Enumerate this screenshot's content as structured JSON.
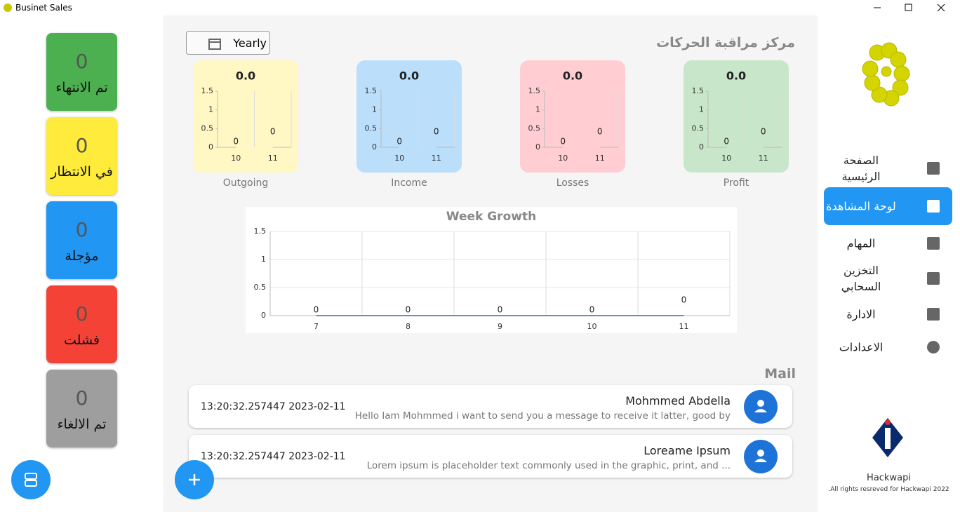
{
  "window": {
    "title": "Businet Sales"
  },
  "status_cards": [
    {
      "count": 0,
      "label": "تم الانتهاء",
      "color": "#4caf50"
    },
    {
      "count": 0,
      "label": "في الانتظار",
      "color": "#ffeb3b"
    },
    {
      "count": 0,
      "label": "مؤجلة",
      "color": "#2196f3"
    },
    {
      "count": 0,
      "label": "فشلت",
      "color": "#f44336"
    },
    {
      "count": 0,
      "label": "تم الالغاء",
      "color": "#9e9e9e"
    }
  ],
  "filter": {
    "label": "Yearly"
  },
  "header": {
    "title": "مركز مراقبة الحركات"
  },
  "summary_cards": [
    {
      "total": "0.0",
      "label": "Outgoing",
      "color": "#fff8c4",
      "categories": [
        10,
        11
      ],
      "values": [
        0,
        0
      ],
      "ylim": [
        0,
        1.5
      ],
      "yticks": [
        0,
        0.5,
        1,
        1.5
      ]
    },
    {
      "total": "0.0",
      "label": "Income",
      "color": "#bbdefb",
      "categories": [
        10,
        11
      ],
      "values": [
        0,
        0
      ],
      "ylim": [
        0,
        1.5
      ],
      "yticks": [
        0,
        0.5,
        1,
        1.5
      ]
    },
    {
      "total": "0.0",
      "label": "Losses",
      "color": "#ffcdd2",
      "categories": [
        10,
        11
      ],
      "values": [
        0,
        0
      ],
      "ylim": [
        0,
        1.5
      ],
      "yticks": [
        0,
        0.5,
        1,
        1.5
      ]
    },
    {
      "total": "0.0",
      "label": "Profit",
      "color": "#c8e6c9",
      "categories": [
        10,
        11
      ],
      "values": [
        0,
        0
      ],
      "ylim": [
        0,
        1.5
      ],
      "yticks": [
        0,
        0.5,
        1,
        1.5
      ]
    }
  ],
  "week_growth": {
    "type": "line",
    "title": "Week Growth",
    "categories": [
      7,
      8,
      9,
      10,
      11
    ],
    "values": [
      0,
      0,
      0,
      0,
      0
    ],
    "ylim": [
      0,
      1.5
    ],
    "yticks": [
      0,
      0.5,
      1,
      1.5
    ],
    "color": "#1e73be"
  },
  "mail": {
    "title": "Mail",
    "items": [
      {
        "name": "Mohmmed Abdella",
        "message": "Hello Iam Mohmmed i want to send you a message to receive it latter, good by",
        "time": "13:20:32.257447 2023-02-11"
      },
      {
        "name": "Loreame Ipsum",
        "message": "Lorem ipsum is placeholder text commonly used in the graphic, print, and ...",
        "time": "13:20:32.257447 2023-02-11"
      }
    ]
  },
  "nav": [
    {
      "label": "الصفحة الرئيسية",
      "active": false
    },
    {
      "label": "لوحة المشاهدة",
      "active": true
    },
    {
      "label": "المهام",
      "active": false
    },
    {
      "label": "التخزين السحابي",
      "active": false
    },
    {
      "label": "الادارة",
      "active": false
    },
    {
      "label": "الاعدادات",
      "active": false
    }
  ],
  "brand": {
    "name": "Hackwapi",
    "rights": "All rights resreved for Hackwapi 2022."
  }
}
